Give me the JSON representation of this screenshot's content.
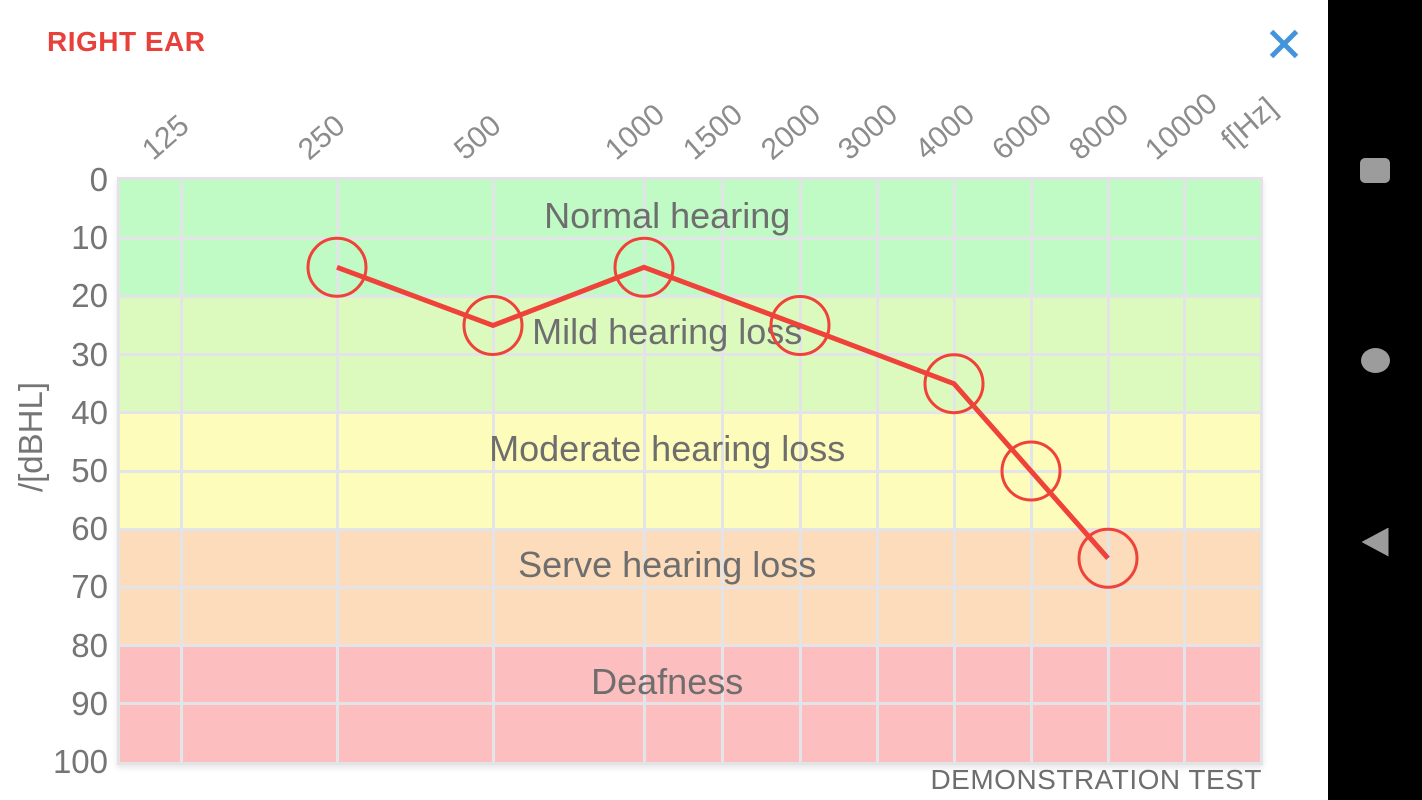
{
  "header": {
    "title": "RIGHT EAR"
  },
  "colors": {
    "title_red": "#e8413c",
    "close_blue": "#4494dc",
    "nav_icon_gray": "#9c9c9c",
    "series_red": "#ef4238",
    "grid_gray": "#e3e4e8",
    "axis_text_gray": "#8c8c8c",
    "band_text_gray": "#6e6e6e"
  },
  "chart_data": {
    "type": "line",
    "x_labels": [
      "125",
      "250",
      "500",
      "1000",
      "1500",
      "2000",
      "3000",
      "4000",
      "6000",
      "8000",
      "10000"
    ],
    "x_unit_label": "f[Hz]",
    "ylabel": "/[dBHL]",
    "y_ticks": [
      0,
      10,
      20,
      30,
      40,
      50,
      60,
      70,
      80,
      90,
      100
    ],
    "ylim": [
      0,
      100
    ],
    "grid": true,
    "bands": [
      {
        "label": "Normal hearing",
        "from": 0,
        "to": 20,
        "color": "#c0fbc6"
      },
      {
        "label": "Mild hearing loss",
        "from": 20,
        "to": 40,
        "color": "#dcfabe"
      },
      {
        "label": "Moderate hearing loss",
        "from": 40,
        "to": 60,
        "color": "#fdfcba"
      },
      {
        "label": "Serve hearing loss",
        "from": 60,
        "to": 80,
        "color": "#fcdcba"
      },
      {
        "label": "Deafness",
        "from": 80,
        "to": 100,
        "color": "#fcbebe"
      }
    ],
    "series": [
      {
        "name": "right-ear-thresholds",
        "color": "#ef4238",
        "points": [
          {
            "f": 250,
            "db": 15
          },
          {
            "f": 500,
            "db": 25
          },
          {
            "f": 1000,
            "db": 15
          },
          {
            "f": 2000,
            "db": 25
          },
          {
            "f": 4000,
            "db": 35
          },
          {
            "f": 6000,
            "db": 50
          },
          {
            "f": 8000,
            "db": 65
          }
        ]
      }
    ],
    "footnote": "DEMONSTRATION TEST"
  },
  "nav_bar": {
    "items": [
      {
        "name": "recents",
        "icon": "square-icon"
      },
      {
        "name": "home",
        "icon": "circle-icon"
      },
      {
        "name": "back",
        "icon": "triangle-left-icon"
      }
    ]
  }
}
